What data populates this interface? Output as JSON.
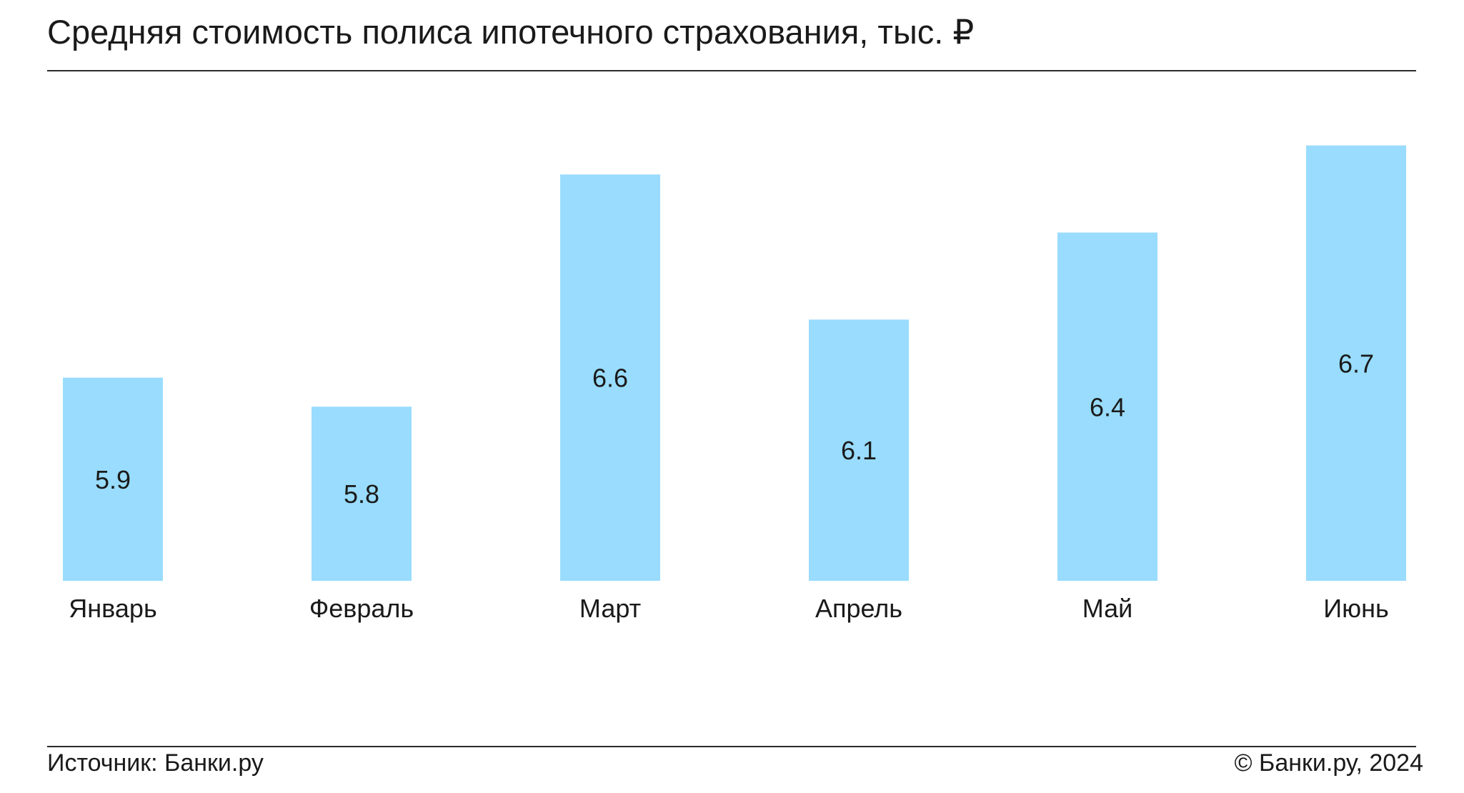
{
  "chart_data": {
    "type": "bar",
    "title": "Средняя стоимость полиса ипотечного страхования, тыс. ₽",
    "categories": [
      "Январь",
      "Февраль",
      "Март",
      "Апрель",
      "Май",
      "Июнь"
    ],
    "values": [
      5.9,
      5.8,
      6.6,
      6.1,
      6.4,
      6.7
    ],
    "data_labels": [
      "5.9",
      "5.8",
      "6.6",
      "6.1",
      "6.4",
      "6.7"
    ],
    "xlabel": "",
    "ylabel": "",
    "ylim": [
      5.2,
      6.8
    ],
    "grid": false,
    "legend": "none",
    "bar_color": "#99dcfd",
    "text_color": "#1a1a1a"
  },
  "footer": {
    "source": "Источник: Банки.ру",
    "copyright": "© Банки.ру, 2024"
  }
}
